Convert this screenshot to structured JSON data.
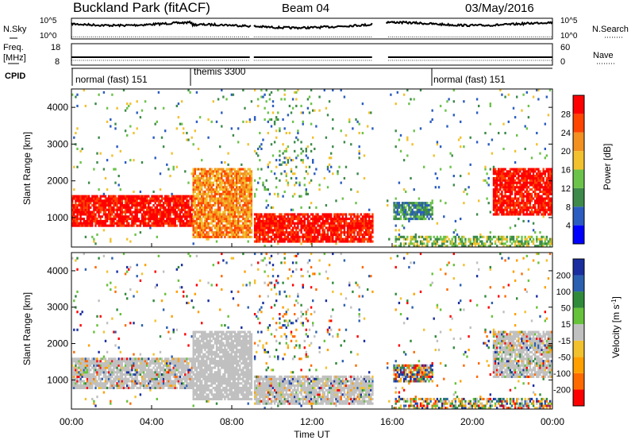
{
  "header": {
    "station": "Buckland Park (fitACF)",
    "beam": "Beam 04",
    "date": "03/May/2016"
  },
  "left_labels": {
    "nsky": "N.Sky",
    "freq_line1": "Freq.",
    "freq_line2": "[MHz]",
    "cpid": "CPID"
  },
  "right_labels": {
    "nsearch": "N.Search",
    "nave": "Nave"
  },
  "noise_panel": {
    "left_ticks": [
      "10^5",
      "10^0"
    ],
    "right_ticks": [
      "10^5",
      "10^0"
    ]
  },
  "freq_panel": {
    "left_ticks": [
      "18",
      "8"
    ],
    "right_ticks": [
      "60",
      "0"
    ]
  },
  "cpid_panel": {
    "segments": [
      {
        "label": "normal (fast) 151",
        "start_hour": 0,
        "end_hour": 6
      },
      {
        "label": "themis 3300",
        "start_hour": 6,
        "end_hour": 18
      },
      {
        "label": "normal (fast) 151",
        "start_hour": 18,
        "end_hour": 24
      }
    ]
  },
  "time_axis": {
    "label": "Time UT",
    "ticks": [
      "00:00",
      "04:00",
      "08:00",
      "12:00",
      "16:00",
      "20:00",
      "00:00"
    ]
  },
  "colors": {
    "power_scale": [
      "#0000ff",
      "#2b5cc0",
      "#3d8a4a",
      "#6cc34a",
      "#f2c12e",
      "#f29020",
      "#ff4500",
      "#ff0000"
    ],
    "velocity_scale": [
      "#ff0000",
      "#ff6a00",
      "#ffa000",
      "#f2c12e",
      "#c0c0c0",
      "#66c23a",
      "#2f8a3a",
      "#2b60b0",
      "#1a2ea0"
    ]
  },
  "chart_data": [
    {
      "type": "heatmap",
      "title": "",
      "xlabel": "Time UT",
      "ylabel": "Slant Range [km]",
      "xlim_hours": [
        0,
        24
      ],
      "ylim": [
        200,
        4500
      ],
      "yticks": [
        1000,
        2000,
        3000,
        4000
      ],
      "colorbar": {
        "label": "Power [dB]",
        "ticks": [
          4,
          8,
          12,
          16,
          20,
          24,
          28
        ],
        "range": [
          0,
          30
        ]
      },
      "features": [
        {
          "t_start": 0,
          "t_end": 6,
          "r_min": 700,
          "r_max": 1600,
          "level": "high"
        },
        {
          "t_start": 6,
          "t_end": 9,
          "r_min": 400,
          "r_max": 2300,
          "level": "mid-high"
        },
        {
          "t_start": 9,
          "t_end": 15,
          "r_min": 300,
          "r_max": 1100,
          "level": "high"
        },
        {
          "t_start": 16,
          "t_end": 18,
          "r_min": 900,
          "r_max": 1400,
          "level": "low"
        },
        {
          "t_start": 21,
          "t_end": 24,
          "r_min": 1000,
          "r_max": 2300,
          "level": "high"
        }
      ]
    },
    {
      "type": "heatmap",
      "title": "",
      "xlabel": "Time UT",
      "ylabel": "Slant Range [km]",
      "xlim_hours": [
        0,
        24
      ],
      "ylim": [
        200,
        4500
      ],
      "yticks": [
        1000,
        2000,
        3000,
        4000
      ],
      "colorbar": {
        "label": "Velocity [m s^-1]",
        "ticks": [
          200,
          100,
          50,
          15,
          -15,
          -50,
          -100,
          -200
        ],
        "range": [
          -250,
          250
        ]
      }
    }
  ]
}
